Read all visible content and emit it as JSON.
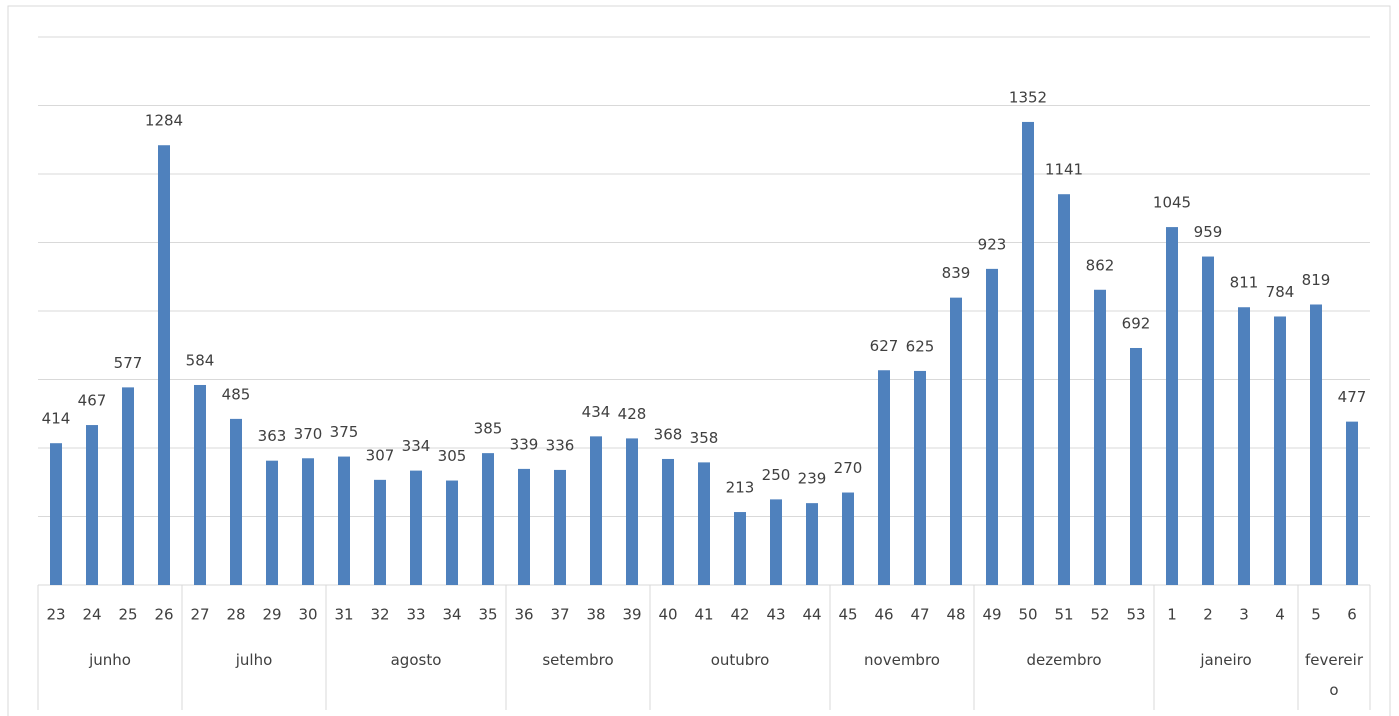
{
  "chart_data": {
    "type": "bar",
    "color": "#4f81bd",
    "grid": true,
    "ylim": [
      0,
      1600
    ],
    "yticks": [
      0,
      200,
      400,
      600,
      800,
      1000,
      1200,
      1400,
      1600
    ],
    "groups": [
      {
        "name": "junho",
        "categories": [
          "23",
          "24",
          "25",
          "26"
        ],
        "values": [
          414,
          467,
          577,
          1284
        ]
      },
      {
        "name": "julho",
        "categories": [
          "27",
          "28",
          "29",
          "30"
        ],
        "values": [
          584,
          485,
          363,
          370
        ]
      },
      {
        "name": "agosto",
        "categories": [
          "31",
          "32",
          "33",
          "34",
          "35"
        ],
        "values": [
          375,
          307,
          334,
          305,
          385
        ]
      },
      {
        "name": "setembro",
        "categories": [
          "36",
          "37",
          "38",
          "39"
        ],
        "values": [
          339,
          336,
          434,
          428
        ]
      },
      {
        "name": "outubro",
        "categories": [
          "40",
          "41",
          "42",
          "43",
          "44"
        ],
        "values": [
          368,
          358,
          213,
          250,
          239
        ]
      },
      {
        "name": "novembro",
        "categories": [
          "45",
          "46",
          "47",
          "48"
        ],
        "values": [
          270,
          627,
          625,
          839
        ]
      },
      {
        "name": "dezembro",
        "categories": [
          "49",
          "50",
          "51",
          "52",
          "53"
        ],
        "values": [
          923,
          1352,
          1141,
          862,
          692
        ]
      },
      {
        "name": "janeiro",
        "categories": [
          "1",
          "2",
          "3",
          "4"
        ],
        "values": [
          1045,
          959,
          811,
          784
        ]
      },
      {
        "name": "fevereiro",
        "categories": [
          "5",
          "6"
        ],
        "values": [
          819,
          477
        ]
      }
    ]
  }
}
